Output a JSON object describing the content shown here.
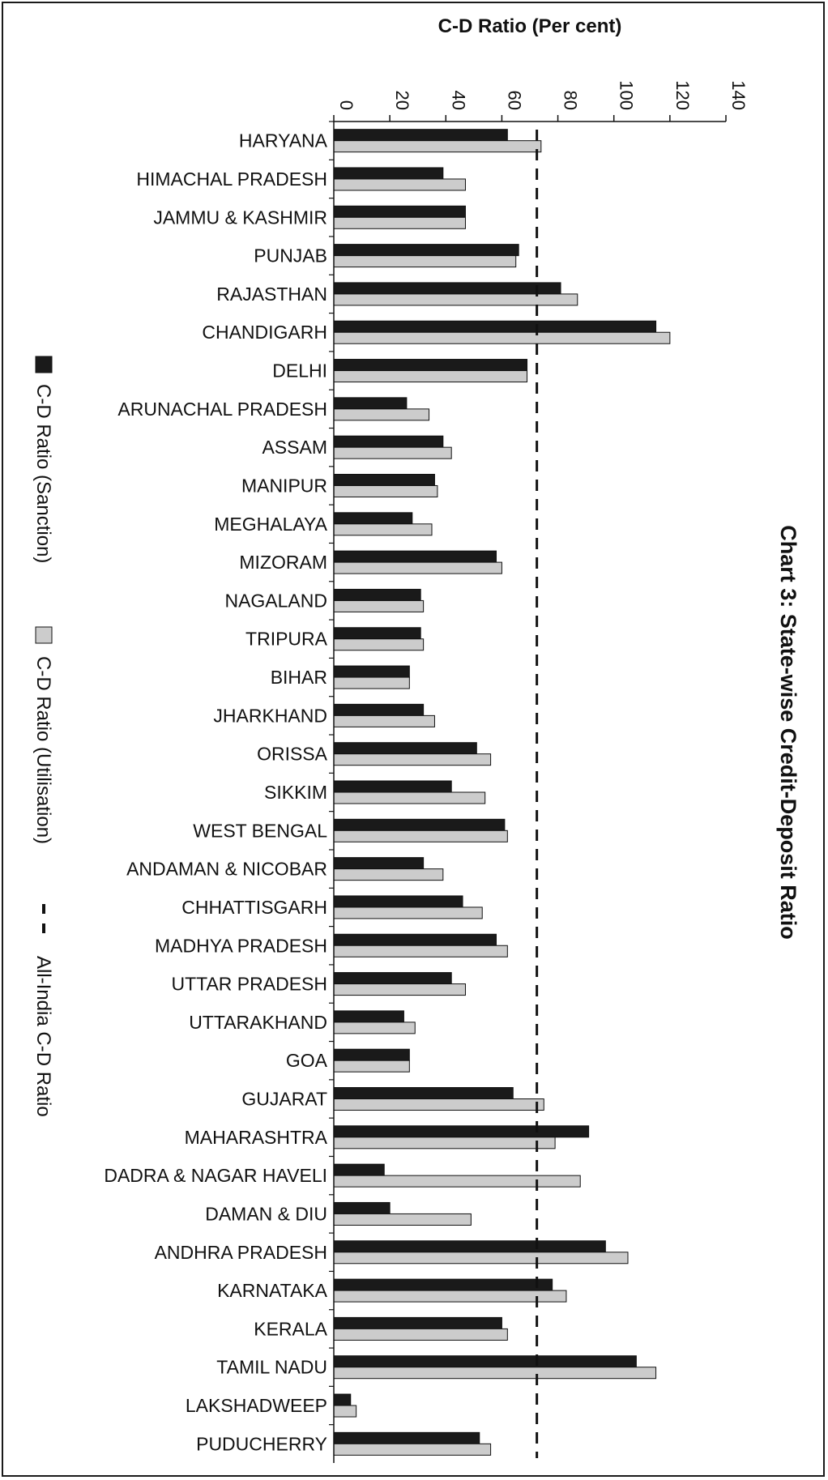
{
  "chart_data": {
    "type": "bar",
    "orientation": "horizontal",
    "title": "Chart 3: State-wise Credit-Deposit Ratio",
    "xlabel": "C-D Ratio (Per cent)",
    "xlim": [
      0,
      140
    ],
    "ticks": [
      0,
      20,
      40,
      60,
      80,
      100,
      120,
      140
    ],
    "tick_labels": [
      "0",
      "20",
      "40",
      "60",
      "80",
      "100",
      "120",
      "140"
    ],
    "categories": [
      "HARYANA",
      "HIMACHAL PRADESH",
      "JAMMU & KASHMIR",
      "PUNJAB",
      "RAJASTHAN",
      "CHANDIGARH",
      "DELHI",
      "ARUNACHAL PRADESH",
      "ASSAM",
      "MANIPUR",
      "MEGHALAYA",
      "MIZORAM",
      "NAGALAND",
      "TRIPURA",
      "BIHAR",
      "JHARKHAND",
      "ORISSA",
      "SIKKIM",
      "WEST BENGAL",
      "ANDAMAN & NICOBAR",
      "CHHATTISGARH",
      "MADHYA PRADESH",
      "UTTAR PRADESH",
      "UTTARAKHAND",
      "GOA",
      "GUJARAT",
      "MAHARASHTRA",
      "DADRA & NAGAR HAVELI",
      "DAMAN & DIU",
      "ANDHRA PRADESH",
      "KARNATAKA",
      "KERALA",
      "TAMIL NADU",
      "LAKSHADWEEP",
      "PUDUCHERRY"
    ],
    "series": [
      {
        "name": "C-D Ratio (Sanction)",
        "color": "#1a1a1a",
        "values": [
          62,
          39,
          47,
          66,
          81,
          115,
          69,
          26,
          39,
          36,
          28,
          58,
          31,
          31,
          27,
          32,
          51,
          42,
          61,
          32,
          46,
          58,
          42,
          25,
          27,
          64,
          91,
          18,
          20,
          97,
          78,
          60,
          108,
          6,
          52
        ]
      },
      {
        "name": "C-D Ratio (Utilisation)",
        "color": "#cccccc",
        "values": [
          74,
          47,
          47,
          65,
          87,
          120,
          69,
          34,
          42,
          37,
          35,
          60,
          32,
          32,
          27,
          36,
          56,
          54,
          62,
          39,
          53,
          62,
          47,
          29,
          27,
          75,
          79,
          88,
          49,
          105,
          83,
          62,
          115,
          8,
          56
        ]
      }
    ],
    "reference_line": {
      "name": "All-India C-D Ratio",
      "value": 72.5,
      "style": "dashed"
    },
    "legend": {
      "placement": "left",
      "entries": [
        "C-D Ratio (Sanction)",
        "C-D Ratio (Utilisation)",
        "All-India C-D Ratio"
      ]
    },
    "grid": false
  }
}
